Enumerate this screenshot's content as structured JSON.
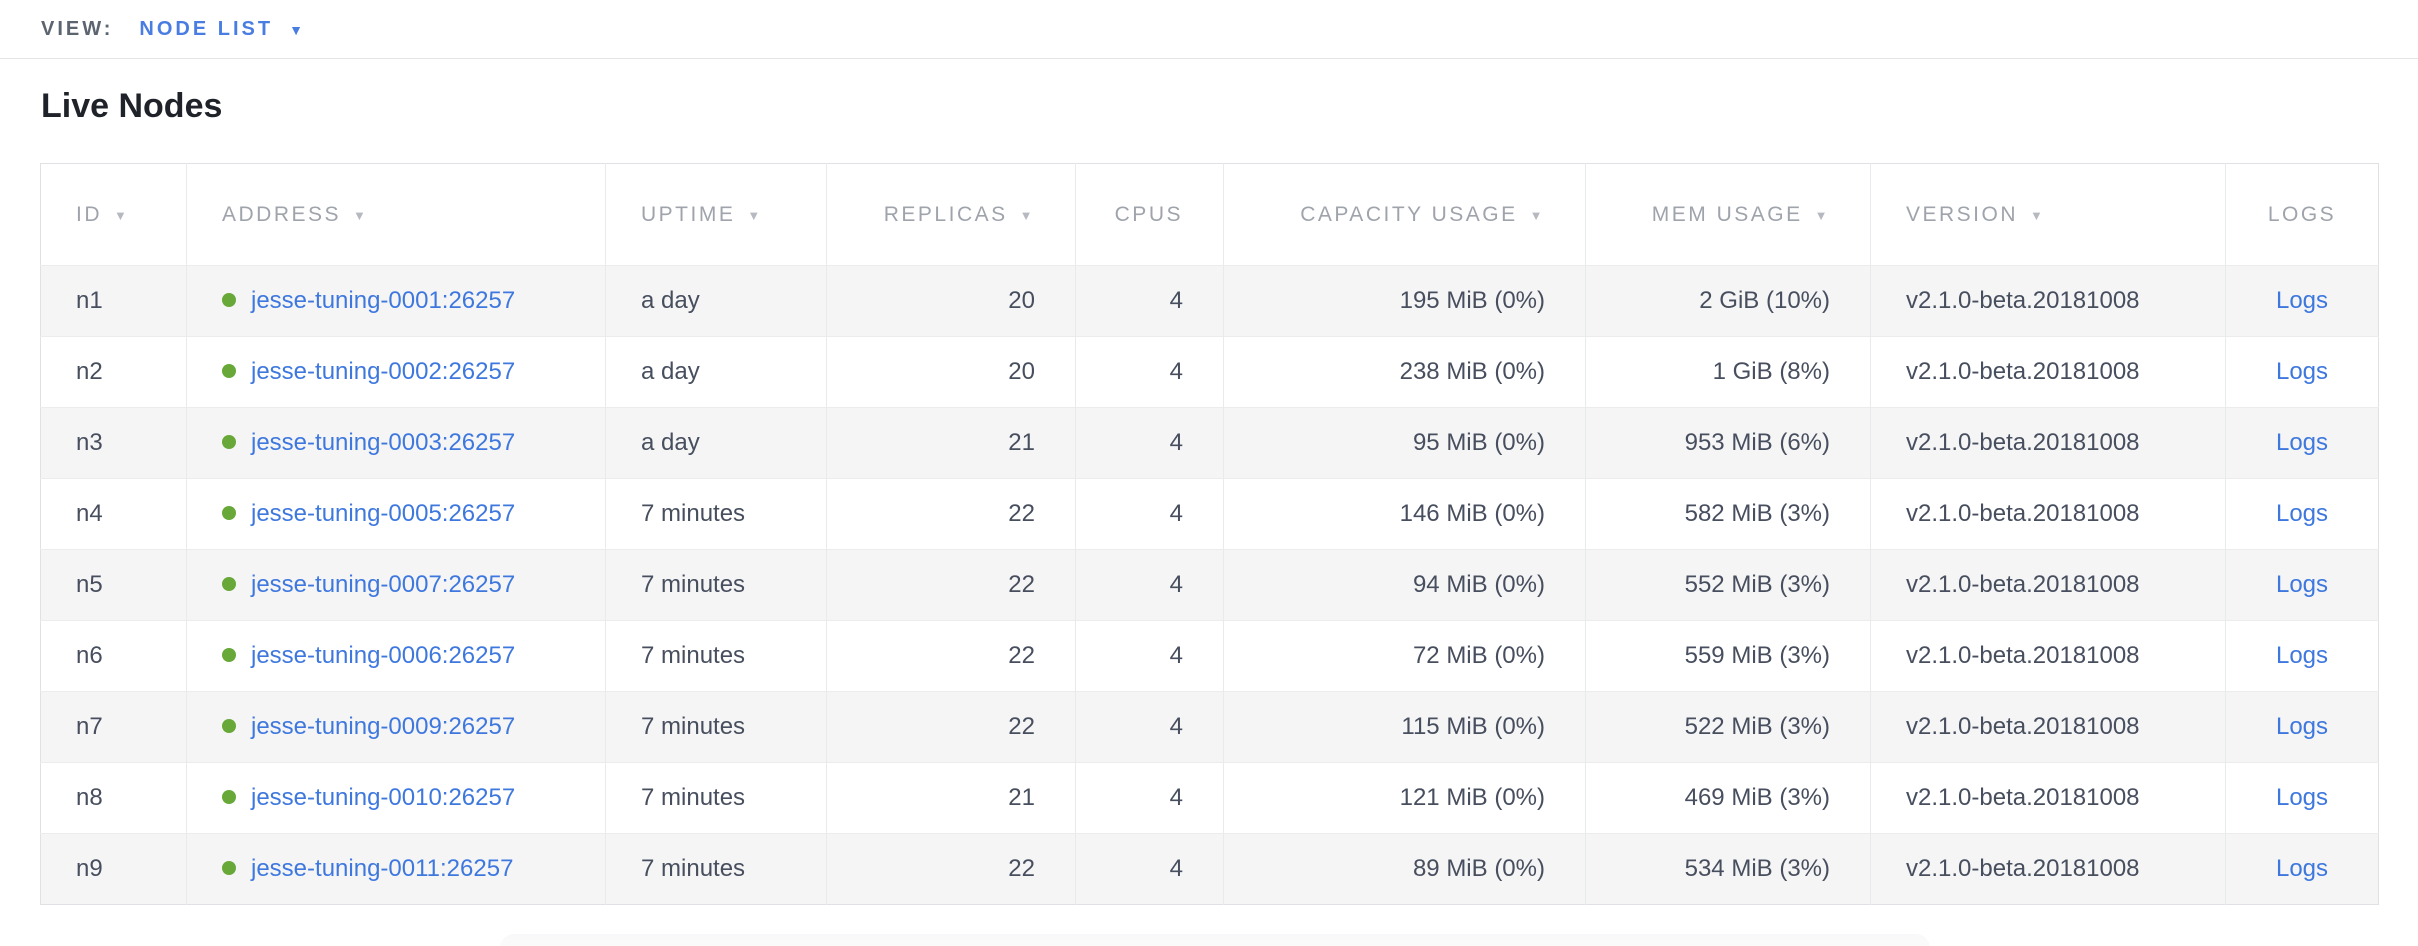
{
  "view_bar": {
    "label": "VIEW:",
    "selected": "NODE LIST",
    "caret": "▼"
  },
  "page": {
    "title": "Live Nodes"
  },
  "table": {
    "columns": [
      {
        "key": "id",
        "label": "ID",
        "sortable": true,
        "align": "left"
      },
      {
        "key": "address",
        "label": "ADDRESS",
        "sortable": true,
        "align": "left"
      },
      {
        "key": "uptime",
        "label": "UPTIME",
        "sortable": true,
        "align": "left"
      },
      {
        "key": "replicas",
        "label": "REPLICAS",
        "sortable": true,
        "align": "right"
      },
      {
        "key": "cpus",
        "label": "CPUS",
        "sortable": false,
        "align": "right"
      },
      {
        "key": "capacity_usage",
        "label": "CAPACITY USAGE",
        "sortable": true,
        "align": "right"
      },
      {
        "key": "mem_usage",
        "label": "MEM USAGE",
        "sortable": true,
        "align": "right"
      },
      {
        "key": "version",
        "label": "VERSION",
        "sortable": true,
        "align": "left"
      },
      {
        "key": "logs",
        "label": "LOGS",
        "sortable": false,
        "align": "center"
      }
    ],
    "sort_arrow": "▼",
    "logs_label": "Logs",
    "rows": [
      {
        "id": "n1",
        "address": "jesse-tuning-0001:26257",
        "uptime": "a day",
        "replicas": "20",
        "cpus": "4",
        "capacity_usage": "195 MiB (0%)",
        "mem_usage": "2 GiB (10%)",
        "version": "v2.1.0-beta.20181008"
      },
      {
        "id": "n2",
        "address": "jesse-tuning-0002:26257",
        "uptime": "a day",
        "replicas": "20",
        "cpus": "4",
        "capacity_usage": "238 MiB (0%)",
        "mem_usage": "1 GiB (8%)",
        "version": "v2.1.0-beta.20181008"
      },
      {
        "id": "n3",
        "address": "jesse-tuning-0003:26257",
        "uptime": "a day",
        "replicas": "21",
        "cpus": "4",
        "capacity_usage": "95 MiB (0%)",
        "mem_usage": "953 MiB (6%)",
        "version": "v2.1.0-beta.20181008"
      },
      {
        "id": "n4",
        "address": "jesse-tuning-0005:26257",
        "uptime": "7 minutes",
        "replicas": "22",
        "cpus": "4",
        "capacity_usage": "146 MiB (0%)",
        "mem_usage": "582 MiB (3%)",
        "version": "v2.1.0-beta.20181008"
      },
      {
        "id": "n5",
        "address": "jesse-tuning-0007:26257",
        "uptime": "7 minutes",
        "replicas": "22",
        "cpus": "4",
        "capacity_usage": "94 MiB (0%)",
        "mem_usage": "552 MiB (3%)",
        "version": "v2.1.0-beta.20181008"
      },
      {
        "id": "n6",
        "address": "jesse-tuning-0006:26257",
        "uptime": "7 minutes",
        "replicas": "22",
        "cpus": "4",
        "capacity_usage": "72 MiB (0%)",
        "mem_usage": "559 MiB (3%)",
        "version": "v2.1.0-beta.20181008"
      },
      {
        "id": "n7",
        "address": "jesse-tuning-0009:26257",
        "uptime": "7 minutes",
        "replicas": "22",
        "cpus": "4",
        "capacity_usage": "115 MiB (0%)",
        "mem_usage": "522 MiB (3%)",
        "version": "v2.1.0-beta.20181008"
      },
      {
        "id": "n8",
        "address": "jesse-tuning-0010:26257",
        "uptime": "7 minutes",
        "replicas": "21",
        "cpus": "4",
        "capacity_usage": "121 MiB (0%)",
        "mem_usage": "469 MiB (3%)",
        "version": "v2.1.0-beta.20181008"
      },
      {
        "id": "n9",
        "address": "jesse-tuning-0011:26257",
        "uptime": "7 minutes",
        "replicas": "22",
        "cpus": "4",
        "capacity_usage": "89 MiB (0%)",
        "mem_usage": "534 MiB (3%)",
        "version": "v2.1.0-beta.20181008"
      }
    ]
  },
  "colors": {
    "accent_blue": "#3e78de",
    "view_selector_blue": "#4a7de2",
    "node_live_green": "#68a839",
    "header_gray": "#9fa3ab",
    "cell_text": "#474e5e",
    "row_stripe": "#f5f5f6",
    "border": "#e9eaec"
  }
}
